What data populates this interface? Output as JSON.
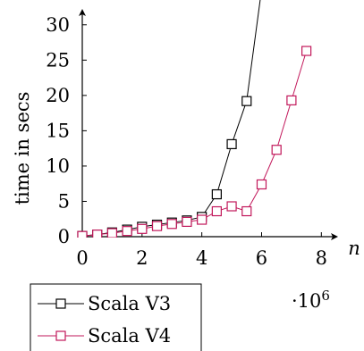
{
  "chart_data": {
    "type": "line",
    "title": "",
    "xlabel": "n",
    "ylabel": "time in secs",
    "x_multiplier_label": "·10",
    "x_multiplier_exp": "6",
    "xlim": [
      0,
      8.2
    ],
    "ylim": [
      0,
      32.5
    ],
    "xticks": [
      0,
      2,
      4,
      6,
      8
    ],
    "yticks": [
      0,
      5,
      10,
      15,
      20,
      25,
      30
    ],
    "grid": false,
    "legend_position": "bottom-left",
    "series": [
      {
        "name": "Scala V3",
        "color": "#000000",
        "x": [
          0,
          0.5,
          1,
          1.5,
          2,
          2.5,
          3,
          3.5,
          4,
          4.5,
          5,
          5.5,
          6
        ],
        "y": [
          0.1,
          0.3,
          0.6,
          1.0,
          1.4,
          1.7,
          2.0,
          2.3,
          2.8,
          6.0,
          13.1,
          19.2,
          35
        ]
      },
      {
        "name": "Scala V4",
        "color": "#c2185b",
        "x": [
          0,
          0.5,
          1,
          1.5,
          2,
          2.5,
          3,
          3.5,
          4,
          4.5,
          5,
          5.5,
          6,
          6.5,
          7,
          7.5
        ],
        "y": [
          0.1,
          0.3,
          0.5,
          0.8,
          1.1,
          1.5,
          1.8,
          2.1,
          2.4,
          3.6,
          4.3,
          3.6,
          7.4,
          12.3,
          19.3,
          26.3
        ]
      }
    ]
  }
}
